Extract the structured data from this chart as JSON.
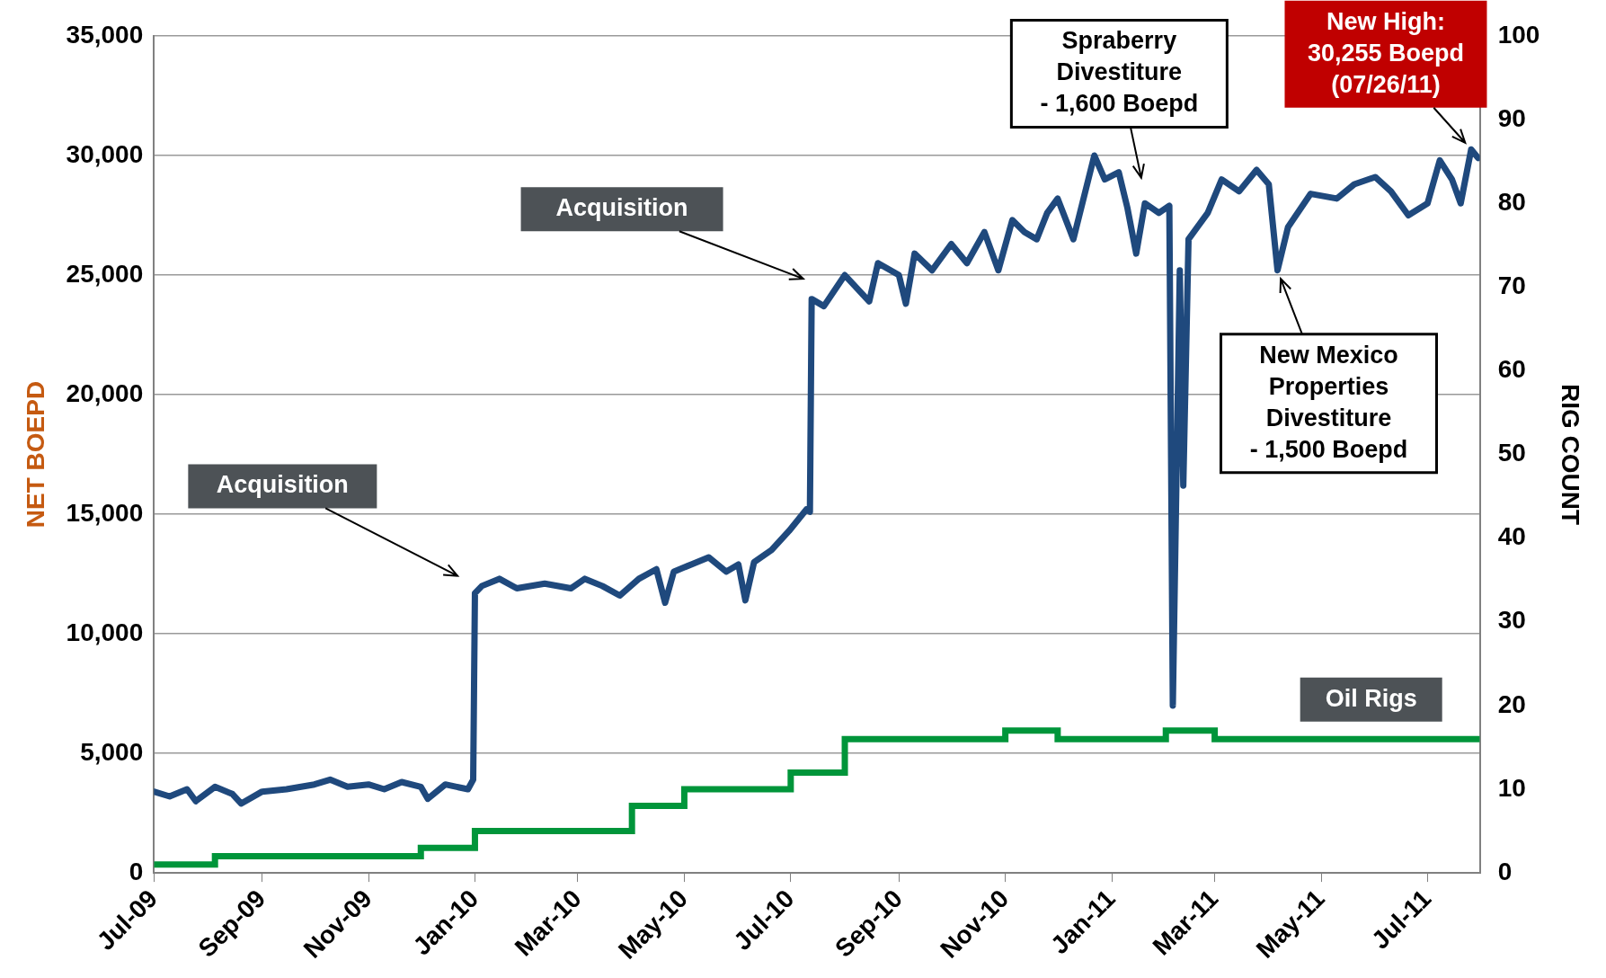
{
  "chart_data": {
    "type": "line",
    "ylabel": "NET BOEPD",
    "y2label": "RIG COUNT",
    "grid": "y",
    "legend": false,
    "marker": "none",
    "xlim": [
      "2009-07-01",
      "2011-07-31"
    ],
    "xticks": [
      {
        "value": "2009-07-01",
        "label": "Jul-09"
      },
      {
        "value": "2009-09-01",
        "label": "Sep-09"
      },
      {
        "value": "2009-11-01",
        "label": "Nov-09"
      },
      {
        "value": "2010-01-01",
        "label": "Jan-10"
      },
      {
        "value": "2010-03-01",
        "label": "Mar-10"
      },
      {
        "value": "2010-05-01",
        "label": "May-10"
      },
      {
        "value": "2010-07-01",
        "label": "Jul-10"
      },
      {
        "value": "2010-09-01",
        "label": "Sep-10"
      },
      {
        "value": "2010-11-01",
        "label": "Nov-10"
      },
      {
        "value": "2011-01-01",
        "label": "Jan-11"
      },
      {
        "value": "2011-03-01",
        "label": "Mar-11"
      },
      {
        "value": "2011-05-01",
        "label": "May-11"
      },
      {
        "value": "2011-07-01",
        "label": "Jul-11"
      }
    ],
    "ylim": [
      0,
      35000
    ],
    "yticks": [
      {
        "value": 0,
        "label": "0"
      },
      {
        "value": 5000,
        "label": "5,000"
      },
      {
        "value": 10000,
        "label": "10,000"
      },
      {
        "value": 15000,
        "label": "15,000"
      },
      {
        "value": 20000,
        "label": "20,000"
      },
      {
        "value": 25000,
        "label": "25,000"
      },
      {
        "value": 30000,
        "label": "30,000"
      },
      {
        "value": 35000,
        "label": "35,000"
      }
    ],
    "y2lim": [
      0,
      100
    ],
    "y2ticks": [
      0,
      10,
      20,
      30,
      40,
      50,
      60,
      70,
      80,
      90,
      100
    ],
    "series": [
      {
        "color": "#1f497d",
        "x": [
          "2009-07-01",
          "2009-07-10",
          "2009-07-20",
          "2009-07-25",
          "2009-08-05",
          "2009-08-15",
          "2009-08-20",
          "2009-09-01",
          "2009-09-15",
          "2009-10-01",
          "2009-10-10",
          "2009-10-20",
          "2009-11-01",
          "2009-11-10",
          "2009-11-20",
          "2009-12-01",
          "2009-12-05",
          "2009-12-15",
          "2009-12-28",
          "2009-12-31",
          "2010-01-01",
          "2010-01-05",
          "2010-01-15",
          "2010-01-25",
          "2010-02-10",
          "2010-02-25",
          "2010-03-05",
          "2010-03-15",
          "2010-03-25",
          "2010-04-05",
          "2010-04-15",
          "2010-04-20",
          "2010-04-25",
          "2010-05-05",
          "2010-05-15",
          "2010-05-25",
          "2010-06-01",
          "2010-06-05",
          "2010-06-10",
          "2010-06-20",
          "2010-06-30",
          "2010-07-10",
          "2010-07-12",
          "2010-07-13",
          "2010-07-20",
          "2010-08-01",
          "2010-08-15",
          "2010-08-20",
          "2010-09-01",
          "2010-09-05",
          "2010-09-10",
          "2010-09-20",
          "2010-10-01",
          "2010-10-10",
          "2010-10-20",
          "2010-10-28",
          "2010-11-05",
          "2010-11-12",
          "2010-11-19",
          "2010-11-25",
          "2010-12-01",
          "2010-12-10",
          "2010-12-22",
          "2010-12-28",
          "2011-01-05",
          "2011-01-10",
          "2011-01-15",
          "2011-01-20",
          "2011-01-28",
          "2011-02-03",
          "2011-02-05",
          "2011-02-09",
          "2011-02-11",
          "2011-02-14",
          "2011-02-25",
          "2011-03-05",
          "2011-03-15",
          "2011-03-25",
          "2011-04-01",
          "2011-04-06",
          "2011-04-12",
          "2011-04-25",
          "2011-05-10",
          "2011-05-20",
          "2011-06-01",
          "2011-06-10",
          "2011-06-20",
          "2011-07-01",
          "2011-07-08",
          "2011-07-15",
          "2011-07-20",
          "2011-07-26",
          "2011-07-30"
        ],
        "values": [
          3400,
          3200,
          3500,
          3000,
          3600,
          3300,
          2900,
          3400,
          3500,
          3700,
          3900,
          3600,
          3700,
          3500,
          3800,
          3600,
          3100,
          3700,
          3500,
          3900,
          11700,
          12000,
          12300,
          11900,
          12100,
          11900,
          12300,
          12000,
          11600,
          12300,
          12700,
          11300,
          12600,
          12900,
          13200,
          12600,
          12900,
          11400,
          13000,
          13500,
          14300,
          15200,
          15100,
          24000,
          23700,
          25000,
          23900,
          25500,
          25000,
          23800,
          25900,
          25200,
          26300,
          25500,
          26800,
          25200,
          27300,
          26800,
          26500,
          27600,
          28200,
          26500,
          30000,
          29000,
          29300,
          27800,
          25900,
          28000,
          27600,
          27900,
          7000,
          25200,
          16200,
          26500,
          27600,
          29000,
          28500,
          29400,
          28800,
          25200,
          27000,
          28400,
          28200,
          28800,
          29100,
          28500,
          27500,
          28000,
          29800,
          29000,
          28000,
          30255,
          29900
        ]
      },
      {
        "name": "Oil Rigs",
        "type": "step",
        "axis": "y2",
        "color": "#00953a",
        "x": [
          "2009-07-01",
          "2009-08-05",
          "2009-12-01",
          "2010-01-01",
          "2010-04-01",
          "2010-05-01",
          "2010-07-01",
          "2010-08-01",
          "2010-11-01",
          "2010-12-01",
          "2011-02-01",
          "2011-03-01",
          "2011-07-31"
        ],
        "values": [
          1,
          2,
          3,
          5,
          8,
          10,
          12,
          16,
          17,
          16,
          17,
          16,
          16
        ]
      }
    ],
    "annotations": [
      "Acquisition",
      "Acquisition",
      "Spraberry\nDivestiture\n- 1,600 Boepd",
      {
        "text": "New High:\n30,255 Boepd\n(07/26/11)",
        "x": "2011-07-26",
        "y": 30255
      },
      {
        "text": "New Mexico\nProperties\nDivestiture\n- 1,500 Boepd",
        "x": "2011-04-06",
        "y": 25200
      }
    ]
  }
}
